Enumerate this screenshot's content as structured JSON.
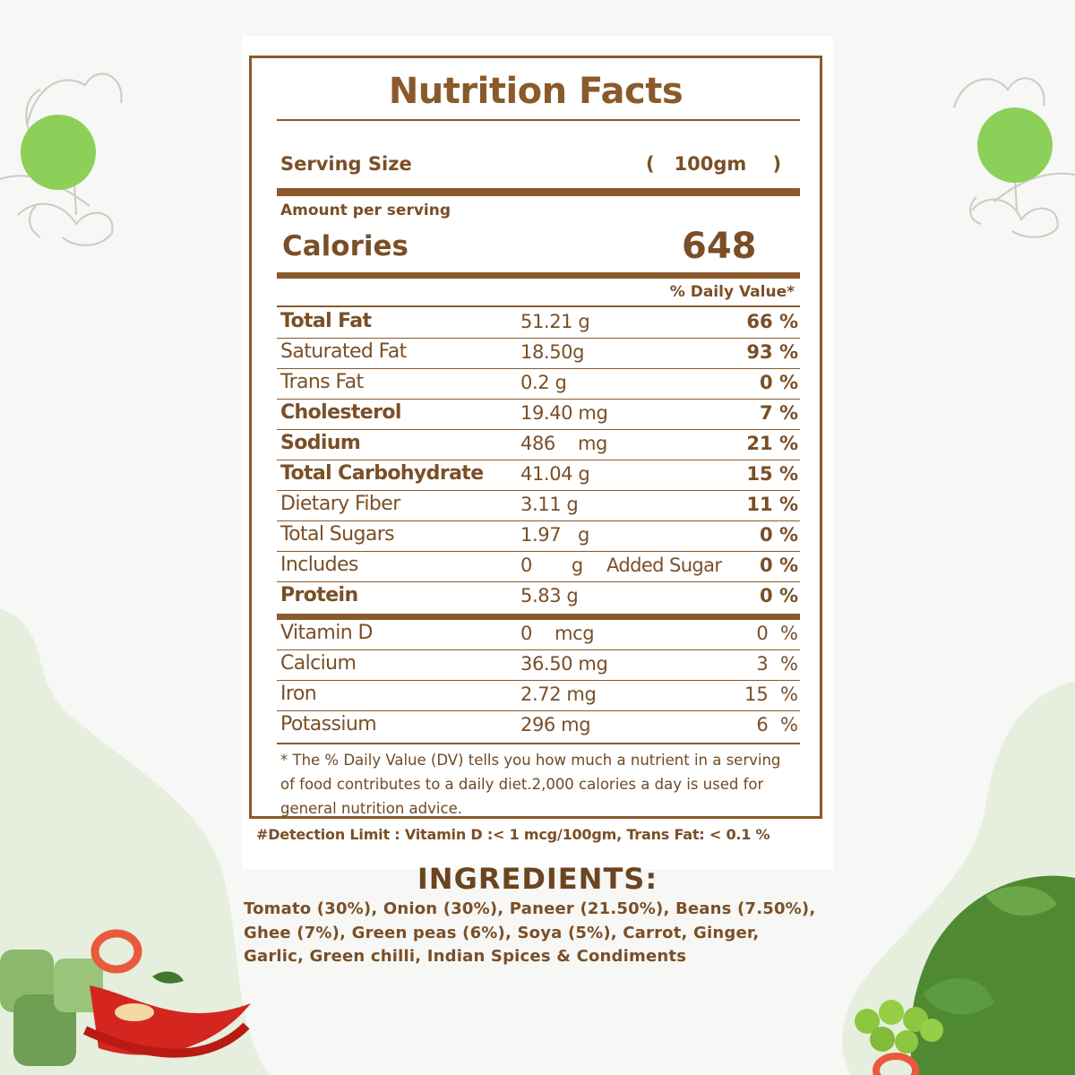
{
  "title": "Nutrition Facts",
  "serving": {
    "label": "Serving Size",
    "value": "(   100gm    )"
  },
  "amount_per_serving": "Amount per serving",
  "calories": {
    "label": "Calories",
    "value": "648"
  },
  "daily_value_header": "% Daily Value*",
  "nutrients": [
    {
      "name": "Total Fat",
      "amount": "51.21 g",
      "extra": "",
      "dv": "66 %",
      "bold_name": true,
      "bold_dv": true
    },
    {
      "name": "Saturated Fat",
      "amount": "18.50g",
      "extra": "",
      "dv": "93 %",
      "bold_name": false,
      "bold_dv": true
    },
    {
      "name": "Trans Fat",
      "amount": "0.2 g",
      "extra": "",
      "dv": "0 %",
      "bold_name": false,
      "bold_dv": true
    },
    {
      "name": "Cholesterol",
      "amount": "19.40 mg",
      "extra": "",
      "dv": "7 %",
      "bold_name": true,
      "bold_dv": true
    },
    {
      "name": "Sodium",
      "amount": "486    mg",
      "extra": "",
      "dv": "21 %",
      "bold_name": true,
      "bold_dv": true
    },
    {
      "name": "Total Carbohydrate",
      "amount": "41.04 g",
      "extra": "",
      "dv": "15 %",
      "bold_name": true,
      "bold_dv": true
    },
    {
      "name": "Dietary Fiber",
      "amount": "3.11 g",
      "extra": "",
      "dv": "11 %",
      "bold_name": false,
      "bold_dv": true
    },
    {
      "name": "Total Sugars",
      "amount": "1.97   g",
      "extra": "",
      "dv": "0 %",
      "bold_name": false,
      "bold_dv": true
    },
    {
      "name": "Includes",
      "amount": "0       g",
      "extra": "Added Sugar",
      "dv": "0 %",
      "bold_name": false,
      "bold_dv": true
    },
    {
      "name": "Protein",
      "amount": "5.83 g",
      "extra": "",
      "dv": "0 %",
      "bold_name": true,
      "bold_dv": true
    }
  ],
  "vitamins": [
    {
      "name": "Vitamin D",
      "amount": "0    mcg",
      "dv": "0  %"
    },
    {
      "name": "Calcium",
      "amount": "36.50 mg",
      "dv": "3  %"
    },
    {
      "name": "Iron",
      "amount": "2.72 mg",
      "dv": "15  %"
    },
    {
      "name": "Potassium",
      "amount": "296 mg",
      "dv": "6  %"
    }
  ],
  "footnote": "* The % Daily Value (DV) tells you how much a nutrient in a serving of food contributes to a daily diet.2,000 calories a day is used for general nutrition advice.",
  "detection_limit": "#Detection Limit : Vitamin D :< 1 mcg/100gm, Trans Fat: < 0.1 %",
  "ingredients": {
    "title": "INGREDIENTS:",
    "text": "Tomato (30%), Onion (30%), Paneer (21.50%), Beans (7.50%), Ghee (7%), Green peas (6%), Soya (5%), Carrot, Ginger, Garlic, Green chilli, Indian Spices & Condiments"
  },
  "colors": {
    "brown": "#8a5a2b",
    "dark_brown": "#6b4420",
    "green": "#8cd05a",
    "bg_green": "#e6eedd"
  }
}
